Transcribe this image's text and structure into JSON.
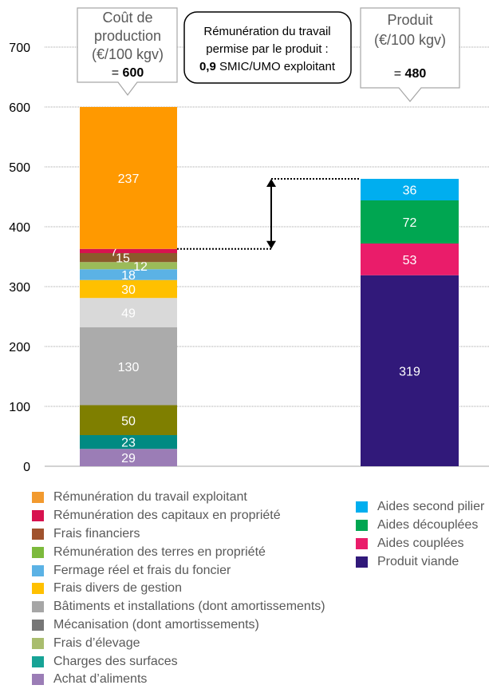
{
  "chart_data": {
    "type": "bar",
    "stacked": true,
    "ylim": [
      0,
      700
    ],
    "yticks": [
      0,
      100,
      200,
      300,
      400,
      500,
      600,
      700
    ],
    "grid": true,
    "bars": [
      {
        "name": "Coût de production",
        "segments": [
          {
            "label": "Achat d'aliments",
            "value": 29,
            "color": "#9B7DB6",
            "shown_label": "29"
          },
          {
            "label": "Charges des surfaces",
            "value": 23,
            "color": "#008A82",
            "shown_label": "23"
          },
          {
            "label": "Frais d'élevage",
            "value": 50,
            "color": "#7F7F00",
            "shown_label": "50"
          },
          {
            "label": "Mécanisation (dont amortissements)",
            "value": 130,
            "color": "#ABABAB",
            "shown_label": "130"
          },
          {
            "label": "Bâtiments et installations (dont amortissements)",
            "value": 49,
            "color": "#D9D9D9",
            "shown_label": "49"
          },
          {
            "label": "Frais divers de gestion",
            "value": 30,
            "color": "#FFC000",
            "shown_label": "30"
          },
          {
            "label": "Fermage réel et frais du foncier",
            "value": 18,
            "color": "#5BB2E5",
            "shown_label": "18"
          },
          {
            "label": "Rémunération des terres en propriété",
            "value": 12,
            "color": "#9BBB59",
            "shown_label": "12"
          },
          {
            "label": "Frais financiers",
            "value": 15,
            "color": "#8B5A2B",
            "shown_label": "15"
          },
          {
            "label": "Rémunération des capitaux en propriété",
            "value": 7,
            "color": "#D7124F",
            "shown_label": "7"
          },
          {
            "label": "Rémunération du travail exploitant",
            "value": 237,
            "color": "#FF9900",
            "shown_label": "237"
          }
        ]
      },
      {
        "name": "Produit",
        "segments": [
          {
            "label": "Produit viande",
            "value": 319,
            "color": "#31197A",
            "shown_label": "319"
          },
          {
            "label": "Aides couplées",
            "value": 53,
            "color": "#EA1C6A",
            "shown_label": "53"
          },
          {
            "label": "Aides découplées",
            "value": 72,
            "color": "#00A651",
            "shown_label": "72"
          },
          {
            "label": "Aides second pilier",
            "value": 36,
            "color": "#00AEEF",
            "shown_label": "36"
          }
        ]
      }
    ]
  },
  "callouts": {
    "cost": {
      "line1": "Coût de",
      "line2": "production",
      "line3": "(€/100 kgv)",
      "prefix": "= ",
      "value": "600"
    },
    "produit": {
      "line1": "Produit",
      "line2": "(€/100 kgv)",
      "prefix": "= ",
      "value": "480"
    },
    "center": {
      "line1": "Rémunération du travail",
      "line2": "permise par le produit :",
      "value": "0,9",
      "rest": " SMIC/UMO exploitant"
    }
  },
  "legend_left": [
    {
      "label": "Rémunération du travail exploitant",
      "color": "#F29A2E"
    },
    {
      "label": "Rémunération des capitaux en propriété",
      "color": "#D7124F"
    },
    {
      "label": "Frais financiers",
      "color": "#A0522D"
    },
    {
      "label": "Rémunération des terres en propriété",
      "color": "#7CBA3C"
    },
    {
      "label": "Fermage réel et frais du foncier",
      "color": "#5BB2E5"
    },
    {
      "label": "Frais divers de gestion",
      "color": "#FFC000"
    },
    {
      "label": "Bâtiments et installations (dont amortissements)",
      "color": "#A6A6A6"
    },
    {
      "label": "Mécanisation (dont amortissements)",
      "color": "#767676"
    },
    {
      "label": "Frais d’élevage",
      "color": "#A9BD6E"
    },
    {
      "label": "Charges des surfaces",
      "color": "#17A396"
    },
    {
      "label": "Achat d’aliments",
      "color": "#9B7DB6"
    }
  ],
  "legend_right": [
    {
      "label": "Aides second pilier",
      "color": "#00AEEF"
    },
    {
      "label": "Aides découplées",
      "color": "#00A651"
    },
    {
      "label": "Aides couplées",
      "color": "#EA1C6A"
    },
    {
      "label": "Produit viande",
      "color": "#31197A"
    }
  ]
}
